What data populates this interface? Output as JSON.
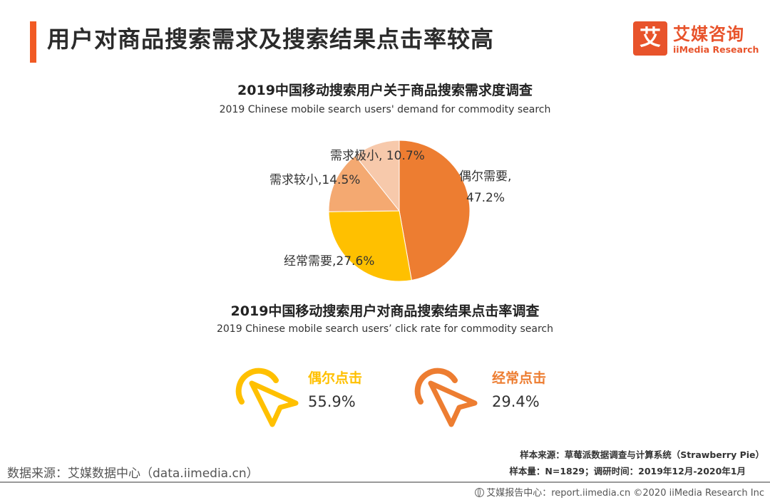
{
  "page": {
    "title": "用户对商品搜索需求及搜索结果点击率较高"
  },
  "brand": {
    "mark": "艾",
    "name_cn": "艾媒咨询",
    "name_en": "iiMedia Research",
    "color": "#e8532b"
  },
  "colors": {
    "accent": "#f15a24",
    "yellow": "#ffc000",
    "orange": "#ed7d31"
  },
  "chart_data": [
    {
      "type": "pie",
      "title": "2019中国移动搜索用户关于商品搜索需求度调查",
      "subtitle": "2019 Chinese mobile search users' demand for commodity search",
      "slices": [
        {
          "label": "偶尔需要",
          "value": 47.2,
          "display": "偶尔需要,",
          "display2": "47.2%",
          "color": "#ed7d31"
        },
        {
          "label": "经常需要",
          "value": 27.6,
          "display": "经常需要,27.6%",
          "color": "#ffc000"
        },
        {
          "label": "需求较小",
          "value": 14.5,
          "display": "需求较小,14.5%",
          "color": "#f4a971"
        },
        {
          "label": "需求极小",
          "value": 10.7,
          "display": "需求极小, 10.7%",
          "color": "#f7c9ab"
        }
      ]
    },
    {
      "type": "table",
      "title": "2019中国移动搜索用户对商品搜索结果点击率调查",
      "subtitle": "2019 Chinese mobile search users’ click rate for commodity search",
      "items": [
        {
          "label": "偶尔点击",
          "value": 55.9,
          "display": "55.9%",
          "color": "#ffc000",
          "icon": "cursor-click-icon"
        },
        {
          "label": "经常点击",
          "value": 29.4,
          "display": "29.4%",
          "color": "#ed7d31",
          "icon": "cursor-click-icon"
        }
      ]
    }
  ],
  "footer": {
    "data_source": "数据来源：艾媒数据中心（data.iimedia.cn）",
    "sample_source": "样本来源：草莓派数据调查与计算系统（Strawberry Pie）",
    "sample_info": "样本量：N=1829；调研时间：2019年12月-2020年1月",
    "report_center": "艾媒报告中心：report.iimedia.cn  ©2020  iiMedia Research  Inc"
  }
}
